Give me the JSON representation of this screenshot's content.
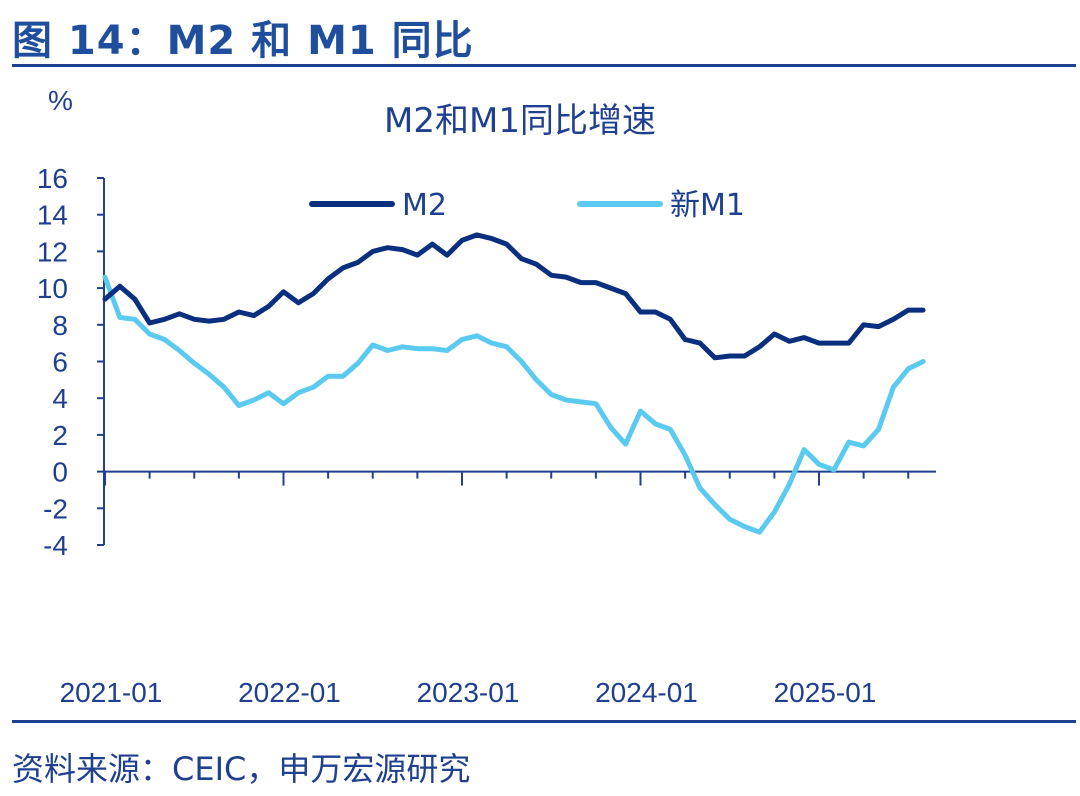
{
  "figure": {
    "heading": "图 14：M2 和 M1 同比",
    "source": "资料来源：CEIC，申万宏源研究"
  },
  "colors": {
    "m2": "#0b2f7f",
    "m1": "#5bcaf0",
    "axis": "#1f3f8f"
  },
  "chart_data": {
    "type": "line",
    "title": "M2和M1同比增速",
    "ylabel": "%",
    "xlabel": "",
    "ylim": [
      -4,
      16
    ],
    "yticks": [
      "16",
      "14",
      "12",
      "10",
      "8",
      "6",
      "4",
      "2",
      "0",
      "-2",
      "-4"
    ],
    "xticks": [
      "2021-01",
      "2022-01",
      "2023-01",
      "2024-01",
      "2025-01"
    ],
    "x_start": "2021-01",
    "legend_position": "top",
    "series": [
      {
        "name": "M2",
        "values": [
          9.4,
          10.1,
          9.4,
          8.1,
          8.3,
          8.6,
          8.3,
          8.2,
          8.3,
          8.7,
          8.5,
          9.0,
          9.8,
          9.2,
          9.7,
          10.5,
          11.1,
          11.4,
          12.0,
          12.2,
          12.1,
          11.8,
          12.4,
          11.8,
          12.6,
          12.9,
          12.7,
          12.4,
          11.6,
          11.3,
          10.7,
          10.6,
          10.3,
          10.3,
          10.0,
          9.7,
          8.7,
          8.7,
          8.3,
          7.2,
          7.0,
          6.2,
          6.3,
          6.3,
          6.8,
          7.5,
          7.1,
          7.3,
          7.0,
          7.0,
          7.0,
          8.0,
          7.9,
          8.3,
          8.8,
          8.8
        ]
      },
      {
        "name": "新M1",
        "values": [
          10.6,
          8.4,
          8.3,
          7.5,
          7.2,
          6.6,
          5.9,
          5.3,
          4.6,
          3.6,
          3.9,
          4.3,
          3.7,
          4.3,
          4.6,
          5.2,
          5.2,
          5.9,
          6.9,
          6.6,
          6.8,
          6.7,
          6.7,
          6.6,
          7.2,
          7.4,
          7.0,
          6.8,
          6.0,
          5.0,
          4.2,
          3.9,
          3.8,
          3.7,
          2.4,
          1.5,
          3.3,
          2.6,
          2.3,
          0.9,
          -0.9,
          -1.8,
          -2.6,
          -3.0,
          -3.3,
          -2.2,
          -0.7,
          1.2,
          0.4,
          0.1,
          1.6,
          1.4,
          2.3,
          4.6,
          5.6,
          6.0
        ]
      }
    ]
  }
}
